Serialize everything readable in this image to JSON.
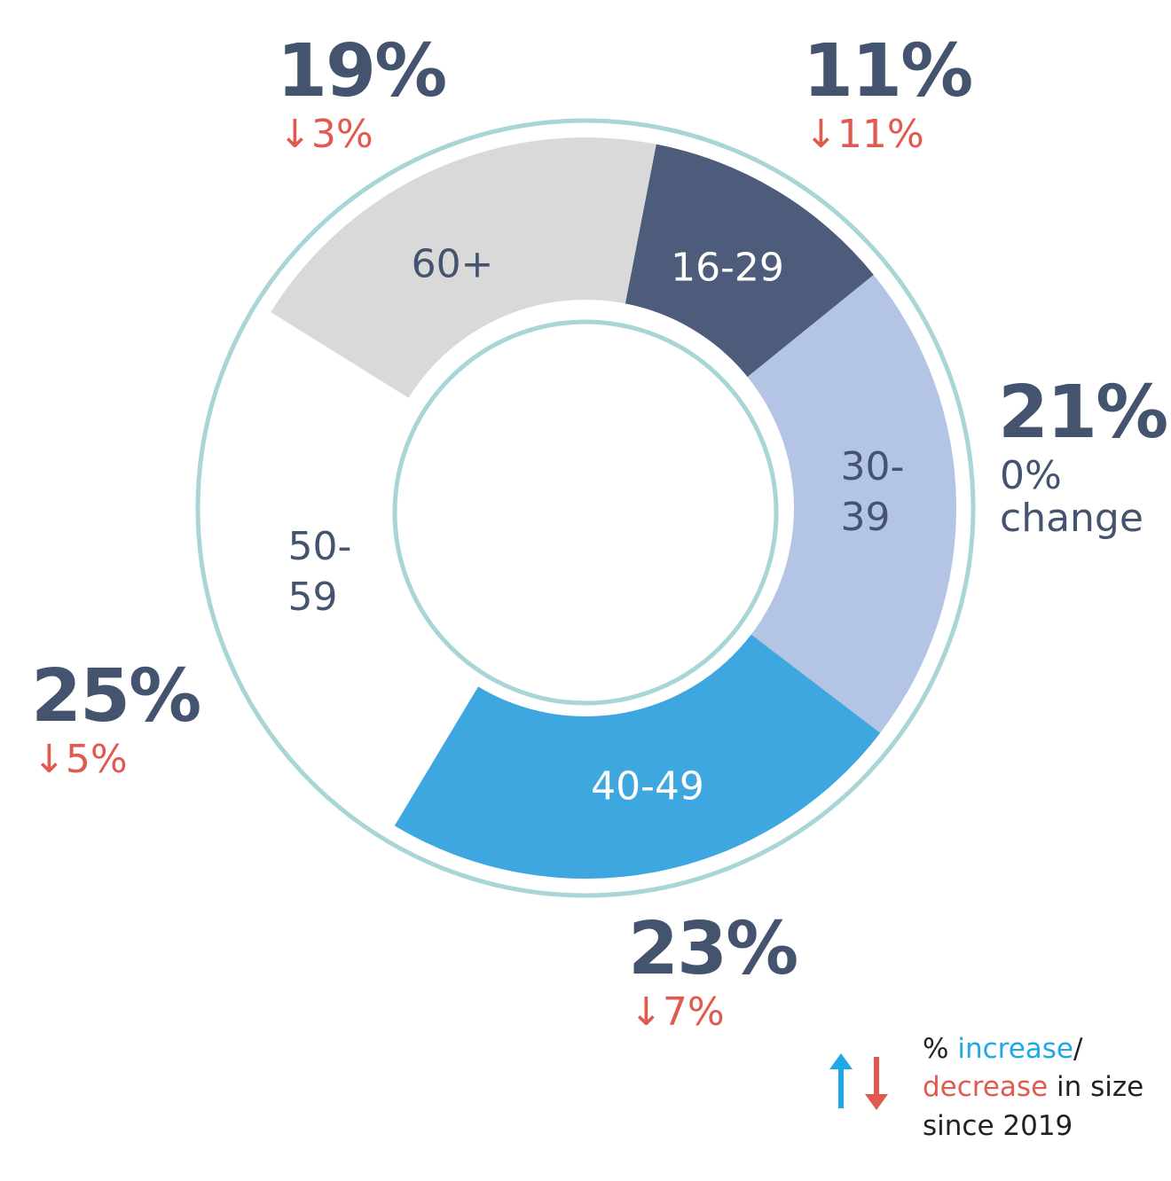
{
  "chart_data": {
    "type": "pie",
    "categories": [
      "16-29",
      "30-39",
      "40-49",
      "50-59",
      "60+"
    ],
    "values": [
      11,
      21,
      23,
      25,
      19
    ],
    "value_labels": [
      "11%",
      "21%",
      "23%",
      "25%",
      "19%"
    ],
    "changes": [
      "↓11%",
      "0% change",
      "↓7%",
      "↓5%",
      "↓3%"
    ],
    "colors": [
      "#4d5c7a",
      "#b3c4e4",
      "#3ea7df",
      "#ffffff",
      "#d9d9d9"
    ],
    "legend": {
      "prefix": "%",
      "increase": "increase",
      "separator": "/",
      "decrease": "decrease",
      "suffix": "in size since 2019"
    }
  }
}
